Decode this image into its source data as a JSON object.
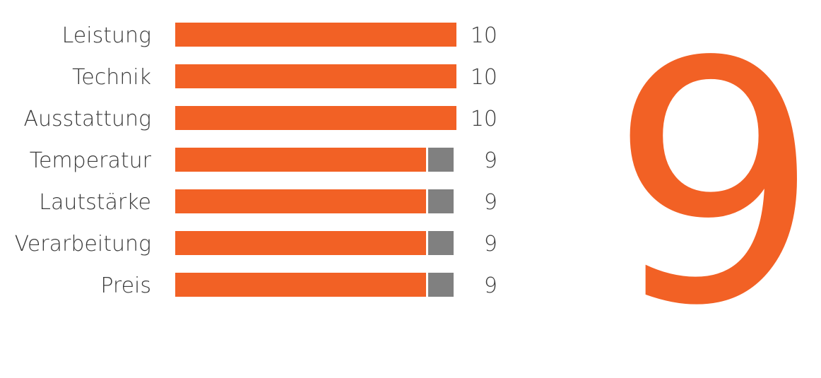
{
  "chart_data": {
    "type": "bar",
    "orientation": "horizontal",
    "categories": [
      "Leistung",
      "Technik",
      "Ausstattung",
      "Temperatur",
      "Lautstärke",
      "Verarbeitung",
      "Preis"
    ],
    "values": [
      10,
      10,
      10,
      9,
      9,
      9,
      9
    ],
    "value_labels": [
      "10",
      "10",
      "10",
      "9",
      "9",
      "9",
      "9"
    ],
    "xlim": [
      0,
      10
    ],
    "grid": false,
    "colors": {
      "bar": "#F26125",
      "remainder": "#808080",
      "text": "#3a3a3a"
    }
  },
  "overall_score": "9"
}
